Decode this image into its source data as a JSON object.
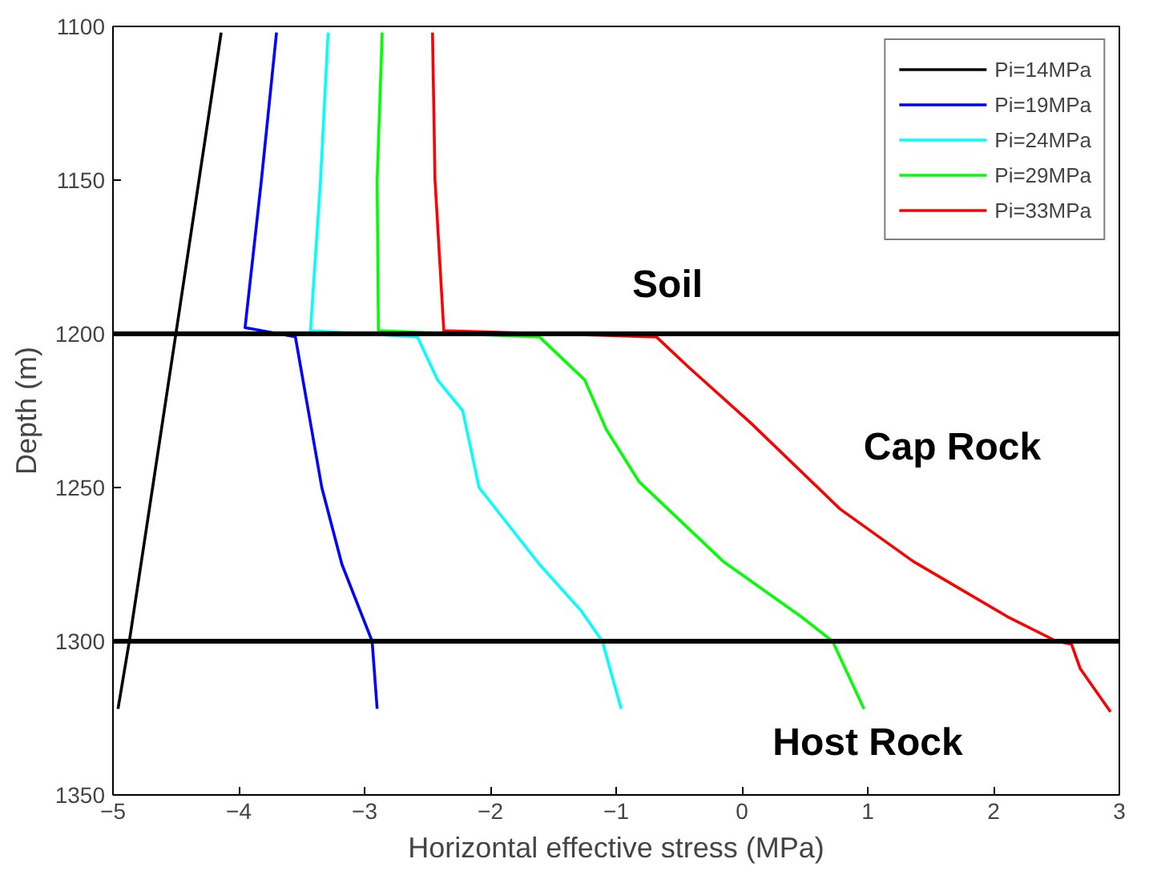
{
  "chart_data": {
    "type": "line",
    "xlabel": "Horizontal effective stress (MPa)",
    "ylabel": "Depth (m)",
    "xlim": [
      -5,
      3
    ],
    "ylim": [
      1350,
      1100
    ],
    "xticks": [
      -5,
      -4,
      -3,
      -2,
      -1,
      0,
      1,
      2,
      3
    ],
    "yticks": [
      1100,
      1150,
      1200,
      1250,
      1300,
      1350
    ],
    "grid": false,
    "legend": "top right",
    "line_style": "solid",
    "series": [
      {
        "name": "Pi=14MPa",
        "color": "#000000",
        "x": [
          -4.14,
          -4.5,
          -4.87,
          -4.96
        ],
        "values": [
          1102,
          1200,
          1300,
          1322
        ]
      },
      {
        "name": "Pi=19MPa",
        "color": "#0000ff",
        "x": [
          -3.7,
          -3.82,
          -3.95,
          -3.55,
          -3.34,
          -3.18,
          -2.94,
          -2.9
        ],
        "values": [
          1102,
          1150,
          1198,
          1201,
          1250,
          1275,
          1300,
          1322
        ]
      },
      {
        "name": "Pi=24MPa",
        "color": "#00ffff",
        "x": [
          -3.29,
          -3.35,
          -3.43,
          -2.58,
          -2.42,
          -2.22,
          -2.09,
          -1.61,
          -1.28,
          -1.11,
          -0.96
        ],
        "values": [
          1102,
          1150,
          1199,
          1201,
          1215,
          1225,
          1250,
          1275,
          1290,
          1300,
          1322
        ]
      },
      {
        "name": "Pi=29MPa",
        "color": "#00ff00",
        "x": [
          -2.86,
          -2.9,
          -2.89,
          -1.61,
          -1.25,
          -1.08,
          -0.82,
          -0.15,
          0.47,
          0.72,
          0.97
        ],
        "values": [
          1102,
          1150,
          1199,
          1201,
          1215,
          1231,
          1248,
          1274,
          1292,
          1300,
          1322
        ]
      },
      {
        "name": "Pi=33MPa",
        "color": "#ff0000",
        "x": [
          -2.46,
          -2.44,
          -2.37,
          -0.68,
          -0.42,
          0.07,
          0.78,
          1.36,
          2.11,
          2.5,
          2.62,
          2.69,
          2.93
        ],
        "values": [
          1102,
          1150,
          1199,
          1201,
          1211,
          1229,
          1257,
          1274,
          1292,
          1300,
          1301,
          1309,
          1323
        ]
      }
    ],
    "ref_lines": [
      {
        "axis": "y",
        "value": 1200,
        "color": "#000000"
      },
      {
        "axis": "y",
        "value": 1300,
        "color": "#000000"
      }
    ],
    "annotations": [
      "Soil",
      "Cap Rock",
      "Host Rock"
    ]
  }
}
